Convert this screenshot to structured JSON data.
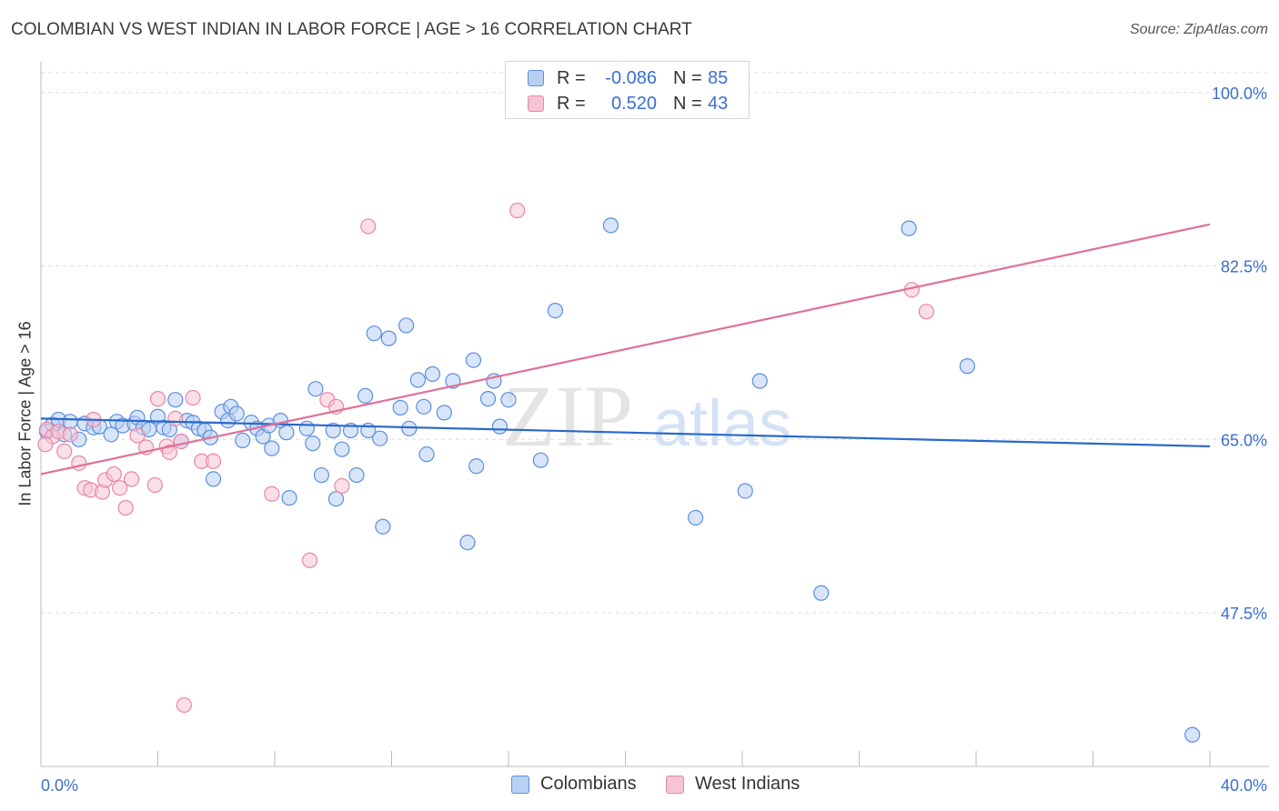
{
  "title": "COLOMBIAN VS WEST INDIAN IN LABOR FORCE | AGE > 16 CORRELATION CHART",
  "source": "Source: ZipAtlas.com",
  "watermark": {
    "zip": "ZIP",
    "atlas": "atlas"
  },
  "legend": {
    "r_label": "R =",
    "n_label": "N =",
    "rows": [
      {
        "r": "-0.086",
        "n": "85"
      },
      {
        "r": "0.520",
        "n": "43"
      }
    ]
  },
  "colors": {
    "blue_fill": "#b8d0f2",
    "blue_stroke": "#5a8ee0",
    "blue_line": "#2a6ac8",
    "pink_fill": "#f7c4d4",
    "pink_stroke": "#e886a6",
    "pink_line": "#e0709a",
    "axis_label": "#3a6fd0",
    "grid": "#dddddd"
  },
  "chart_data": {
    "type": "scatter",
    "title": "COLOMBIAN VS WEST INDIAN IN LABOR FORCE | AGE > 16 CORRELATION CHART",
    "xlabel": "",
    "ylabel": "In Labor Force | Age > 16",
    "xlim": [
      0,
      40
    ],
    "ylim": [
      32,
      102
    ],
    "x_tick_labels": [
      "0.0%",
      "40.0%"
    ],
    "y_ticks": [
      47.5,
      65.0,
      82.5,
      100.0
    ],
    "y_tick_labels": [
      "47.5%",
      "65.0%",
      "82.5%",
      "100.0%"
    ],
    "grid": true,
    "legend_position": "top-center",
    "series": [
      {
        "name": "Colombians",
        "trend": [
          [
            0,
            67.1
          ],
          [
            40,
            64.3
          ]
        ],
        "points": [
          [
            0.2,
            65.8
          ],
          [
            0.4,
            66.5
          ],
          [
            0.6,
            67.0
          ],
          [
            0.8,
            65.5
          ],
          [
            1.0,
            66.8
          ],
          [
            1.3,
            65.0
          ],
          [
            1.5,
            66.6
          ],
          [
            1.8,
            66.2
          ],
          [
            2.0,
            66.3
          ],
          [
            2.4,
            65.5
          ],
          [
            2.6,
            66.8
          ],
          [
            2.8,
            66.4
          ],
          [
            3.2,
            66.6
          ],
          [
            3.3,
            67.2
          ],
          [
            3.5,
            66.2
          ],
          [
            3.7,
            66.0
          ],
          [
            4.0,
            67.3
          ],
          [
            4.2,
            66.2
          ],
          [
            4.4,
            66.0
          ],
          [
            4.6,
            69.0
          ],
          [
            4.8,
            64.8
          ],
          [
            5.0,
            66.9
          ],
          [
            5.2,
            66.7
          ],
          [
            5.4,
            66.1
          ],
          [
            5.6,
            65.9
          ],
          [
            5.8,
            65.2
          ],
          [
            5.9,
            61.0
          ],
          [
            6.2,
            67.8
          ],
          [
            6.4,
            66.9
          ],
          [
            6.5,
            68.3
          ],
          [
            6.7,
            67.6
          ],
          [
            6.9,
            64.9
          ],
          [
            7.2,
            66.7
          ],
          [
            7.4,
            66.1
          ],
          [
            7.6,
            65.3
          ],
          [
            7.8,
            66.4
          ],
          [
            7.9,
            64.1
          ],
          [
            8.2,
            66.9
          ],
          [
            8.4,
            65.7
          ],
          [
            8.5,
            59.1
          ],
          [
            9.1,
            66.1
          ],
          [
            9.3,
            64.6
          ],
          [
            9.4,
            70.1
          ],
          [
            9.6,
            61.4
          ],
          [
            10.0,
            65.9
          ],
          [
            10.1,
            59.0
          ],
          [
            10.3,
            64.0
          ],
          [
            10.6,
            65.9
          ],
          [
            10.8,
            61.4
          ],
          [
            11.1,
            69.4
          ],
          [
            11.2,
            65.9
          ],
          [
            11.4,
            75.7
          ],
          [
            11.6,
            65.1
          ],
          [
            11.7,
            56.2
          ],
          [
            11.9,
            75.2
          ],
          [
            12.3,
            68.2
          ],
          [
            12.5,
            76.5
          ],
          [
            12.6,
            66.1
          ],
          [
            12.9,
            71.0
          ],
          [
            13.1,
            68.3
          ],
          [
            13.2,
            63.5
          ],
          [
            13.4,
            71.6
          ],
          [
            13.8,
            67.7
          ],
          [
            14.1,
            70.9
          ],
          [
            14.6,
            54.6
          ],
          [
            14.8,
            73.0
          ],
          [
            14.9,
            62.3
          ],
          [
            15.3,
            69.1
          ],
          [
            15.5,
            70.9
          ],
          [
            15.7,
            66.3
          ],
          [
            16.0,
            69.0
          ],
          [
            17.1,
            62.9
          ],
          [
            17.6,
            78.0
          ],
          [
            19.5,
            86.6
          ],
          [
            22.4,
            57.1
          ],
          [
            24.1,
            59.8
          ],
          [
            24.6,
            70.9
          ],
          [
            26.7,
            49.5
          ],
          [
            29.7,
            86.3
          ],
          [
            31.7,
            72.4
          ],
          [
            39.4,
            35.2
          ]
        ]
      },
      {
        "name": "West Indians",
        "trend": [
          [
            0,
            61.5
          ],
          [
            40,
            86.7
          ]
        ],
        "points": [
          [
            0.2,
            66.0
          ],
          [
            0.4,
            65.3
          ],
          [
            0.6,
            65.8
          ],
          [
            0.8,
            63.8
          ],
          [
            1.0,
            65.5
          ],
          [
            1.3,
            62.6
          ],
          [
            1.5,
            60.1
          ],
          [
            1.7,
            59.9
          ],
          [
            1.8,
            67.0
          ],
          [
            2.1,
            59.7
          ],
          [
            2.2,
            60.9
          ],
          [
            2.5,
            61.5
          ],
          [
            2.7,
            60.1
          ],
          [
            2.9,
            58.1
          ],
          [
            3.1,
            61.0
          ],
          [
            3.3,
            65.4
          ],
          [
            3.6,
            64.2
          ],
          [
            3.9,
            60.4
          ],
          [
            4.0,
            69.1
          ],
          [
            4.3,
            64.3
          ],
          [
            4.4,
            63.7
          ],
          [
            4.6,
            67.1
          ],
          [
            4.8,
            64.8
          ],
          [
            4.9,
            38.2
          ],
          [
            5.2,
            69.2
          ],
          [
            5.5,
            62.8
          ],
          [
            5.9,
            62.8
          ],
          [
            7.9,
            59.5
          ],
          [
            9.2,
            52.8
          ],
          [
            9.8,
            69.0
          ],
          [
            10.1,
            68.3
          ],
          [
            10.3,
            60.3
          ],
          [
            11.2,
            86.5
          ],
          [
            16.3,
            88.1
          ],
          [
            29.8,
            80.1
          ],
          [
            30.3,
            77.9
          ],
          [
            0.15,
            64.5
          ]
        ]
      }
    ]
  }
}
